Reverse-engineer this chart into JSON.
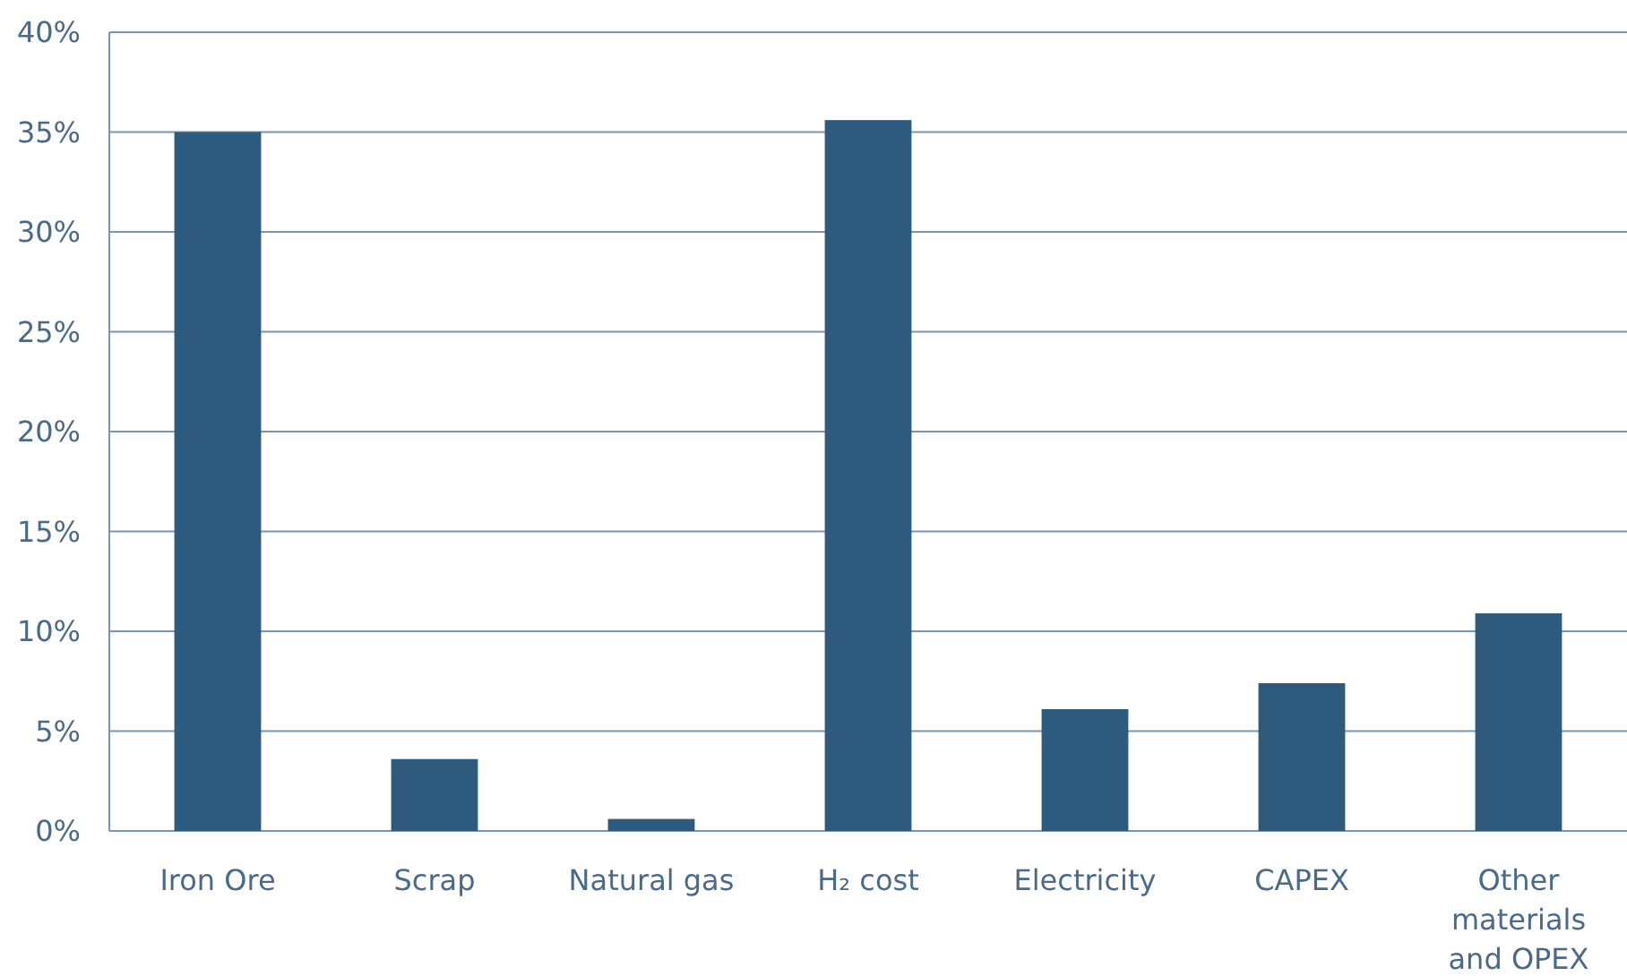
{
  "chart_data": {
    "type": "bar",
    "categories": [
      "Iron Ore",
      "Scrap",
      "Natural gas",
      "H₂ cost",
      "Electricity",
      "CAPEX",
      "Other materials and OPEX"
    ],
    "values": [
      35,
      3.6,
      0.6,
      35.6,
      6.1,
      7.4,
      10.9
    ],
    "color": "#2e5a7e",
    "ylim": [
      0,
      40
    ],
    "yticks": [
      {
        "value": 0,
        "label": "0%"
      },
      {
        "value": 5,
        "label": "5%"
      },
      {
        "value": 10,
        "label": "10%"
      },
      {
        "value": 15,
        "label": "15%"
      },
      {
        "value": 20,
        "label": "20%"
      },
      {
        "value": 25,
        "label": "25%"
      },
      {
        "value": 30,
        "label": "30%"
      },
      {
        "value": 35,
        "label": "35%"
      },
      {
        "value": 40,
        "label": "40%"
      }
    ],
    "grid": "y"
  }
}
